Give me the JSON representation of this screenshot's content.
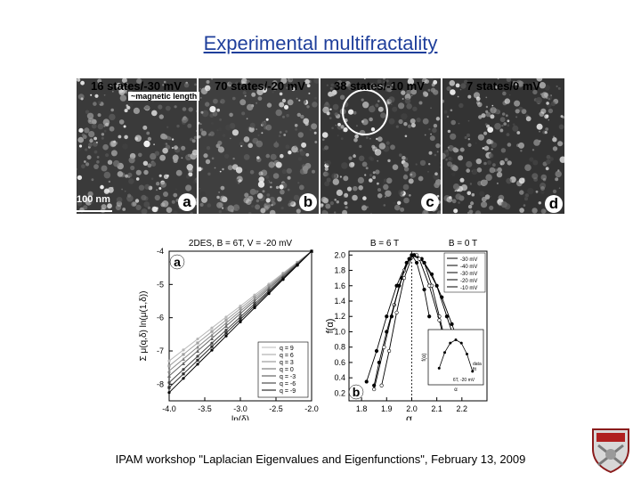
{
  "title": "Experimental multifractality",
  "footer": "IPAM workshop \"Laplacian Eigenvalues and Eigenfunctions\", February 13, 2009",
  "maps": {
    "panels": [
      {
        "title": "16 states/-30 mV",
        "letter": "a"
      },
      {
        "title": "70 states/-20 mV",
        "letter": "b"
      },
      {
        "title": "38 states/-10 mV",
        "letter": "c"
      },
      {
        "title": "7 states/0 mV",
        "letter": "d"
      }
    ],
    "magnetic_length_label": "~magnetic length",
    "scale_bar_label": "100 nm"
  },
  "chart_data": [
    {
      "type": "line",
      "panel_letter": "a",
      "header": "2DES, B = 6T, V = -20 mV",
      "xlabel": "ln(δ)",
      "ylabel": "Σ μ(q,δ) ln(μ(1,δ))",
      "xlim": [
        -4.0,
        -2.0
      ],
      "ylim": [
        -8.5,
        -4.0
      ],
      "x_ticks": [
        "-4.0",
        "-3.5",
        "-3.0",
        "-2.5",
        "-2.0"
      ],
      "y_ticks": [
        "-4",
        "-5",
        "-6",
        "-7",
        "-8"
      ],
      "x": [
        -4.0,
        -3.8,
        -3.6,
        -3.4,
        -3.2,
        -3.0,
        -2.8,
        -2.6,
        -2.4,
        -2.2,
        -2.0
      ],
      "series": [
        {
          "name": "q = 9",
          "values": [
            -7.3,
            -6.97,
            -6.64,
            -6.31,
            -5.98,
            -5.65,
            -5.32,
            -4.99,
            -4.66,
            -4.33,
            -4.0
          ]
        },
        {
          "name": "q = 6",
          "values": [
            -7.45,
            -7.105,
            -6.76,
            -6.415,
            -6.07,
            -5.725,
            -5.38,
            -5.035,
            -4.69,
            -4.345,
            -4.0
          ]
        },
        {
          "name": "q = 3",
          "values": [
            -7.6,
            -7.24,
            -6.88,
            -6.52,
            -6.16,
            -5.8,
            -5.44,
            -5.08,
            -4.72,
            -4.36,
            -4.0
          ]
        },
        {
          "name": "q = 0",
          "values": [
            -7.75,
            -7.375,
            -7.0,
            -6.625,
            -6.25,
            -5.875,
            -5.5,
            -5.125,
            -4.75,
            -4.375,
            -4.0
          ]
        },
        {
          "name": "q = -3",
          "values": [
            -7.95,
            -7.555,
            -7.16,
            -6.765,
            -6.37,
            -5.975,
            -5.58,
            -5.185,
            -4.79,
            -4.395,
            -4.0
          ]
        },
        {
          "name": "q = -6",
          "values": [
            -8.1,
            -7.69,
            -7.28,
            -6.87,
            -6.46,
            -6.05,
            -5.64,
            -5.23,
            -4.82,
            -4.41,
            -4.0
          ]
        },
        {
          "name": "q = -9",
          "values": [
            -8.25,
            -7.825,
            -7.4,
            -6.975,
            -6.55,
            -6.125,
            -5.7,
            -5.275,
            -4.85,
            -4.425,
            -4.0
          ]
        }
      ],
      "legend": "bottom-right"
    },
    {
      "type": "line",
      "panel_letter": "b",
      "top_labels": [
        "B = 6 T",
        "B = 0 T"
      ],
      "xlabel": "α",
      "ylabel": "f(α)",
      "xlim": [
        1.75,
        2.3
      ],
      "ylim": [
        0.1,
        2.05
      ],
      "x_ticks": [
        "1.8",
        "1.9",
        "2.0",
        "2.1",
        "2.2"
      ],
      "y_ticks": [
        "2.0",
        "1.8",
        "1.6",
        "1.4",
        "1.2",
        "1.0",
        "0.8",
        "0.6",
        "0.4",
        "0.2"
      ],
      "series": [
        {
          "name": "-30 mV",
          "x": [
            1.85,
            1.87,
            1.9,
            1.93,
            1.96,
            1.99,
            2.01,
            2.04,
            2.08,
            2.12,
            2.16,
            2.2,
            2.24
          ],
          "values": [
            0.3,
            0.6,
            1.0,
            1.35,
            1.7,
            1.95,
            2.0,
            1.95,
            1.75,
            1.45,
            1.1,
            0.75,
            0.45
          ]
        },
        {
          "name": "-40 mV",
          "x": [
            1.88,
            1.91,
            1.94,
            1.97,
            2.0,
            2.02,
            2.05,
            2.08,
            2.11,
            2.14
          ],
          "values": [
            0.3,
            0.75,
            1.25,
            1.7,
            1.97,
            2.0,
            1.9,
            1.6,
            1.2,
            0.8
          ]
        },
        {
          "name": "-30 mV",
          "x": [
            1.82,
            1.86,
            1.9,
            1.94,
            1.98,
            2.01,
            2.05,
            2.1,
            2.14,
            2.18
          ],
          "values": [
            0.35,
            0.75,
            1.2,
            1.6,
            1.9,
            2.0,
            1.9,
            1.6,
            1.2,
            0.8
          ]
        },
        {
          "name": "-20 mV",
          "x": [
            1.85,
            1.89,
            1.93,
            1.97,
            2.0,
            2.03,
            2.07,
            2.11,
            2.15
          ],
          "values": [
            0.25,
            0.8,
            1.35,
            1.8,
            2.0,
            1.95,
            1.6,
            1.15,
            0.6
          ]
        },
        {
          "name": "-10 mV",
          "x": [
            1.92,
            1.95,
            1.98,
            2.0,
            2.02,
            2.05,
            2.07
          ],
          "values": [
            1.2,
            1.6,
            1.9,
            2.0,
            1.9,
            1.55,
            1.2
          ]
        }
      ],
      "legend": "top-right",
      "inset": {
        "xlabel": "α",
        "ylabel": "f(α)",
        "legend": [
          "data",
          "fit"
        ],
        "note": "6T, -20 mV",
        "x": [
          1.85,
          1.9,
          1.95,
          2.0,
          2.05,
          2.1,
          2.15
        ],
        "values": [
          1.1,
          1.6,
          1.9,
          2.0,
          1.9,
          1.55,
          1.0
        ]
      }
    }
  ]
}
